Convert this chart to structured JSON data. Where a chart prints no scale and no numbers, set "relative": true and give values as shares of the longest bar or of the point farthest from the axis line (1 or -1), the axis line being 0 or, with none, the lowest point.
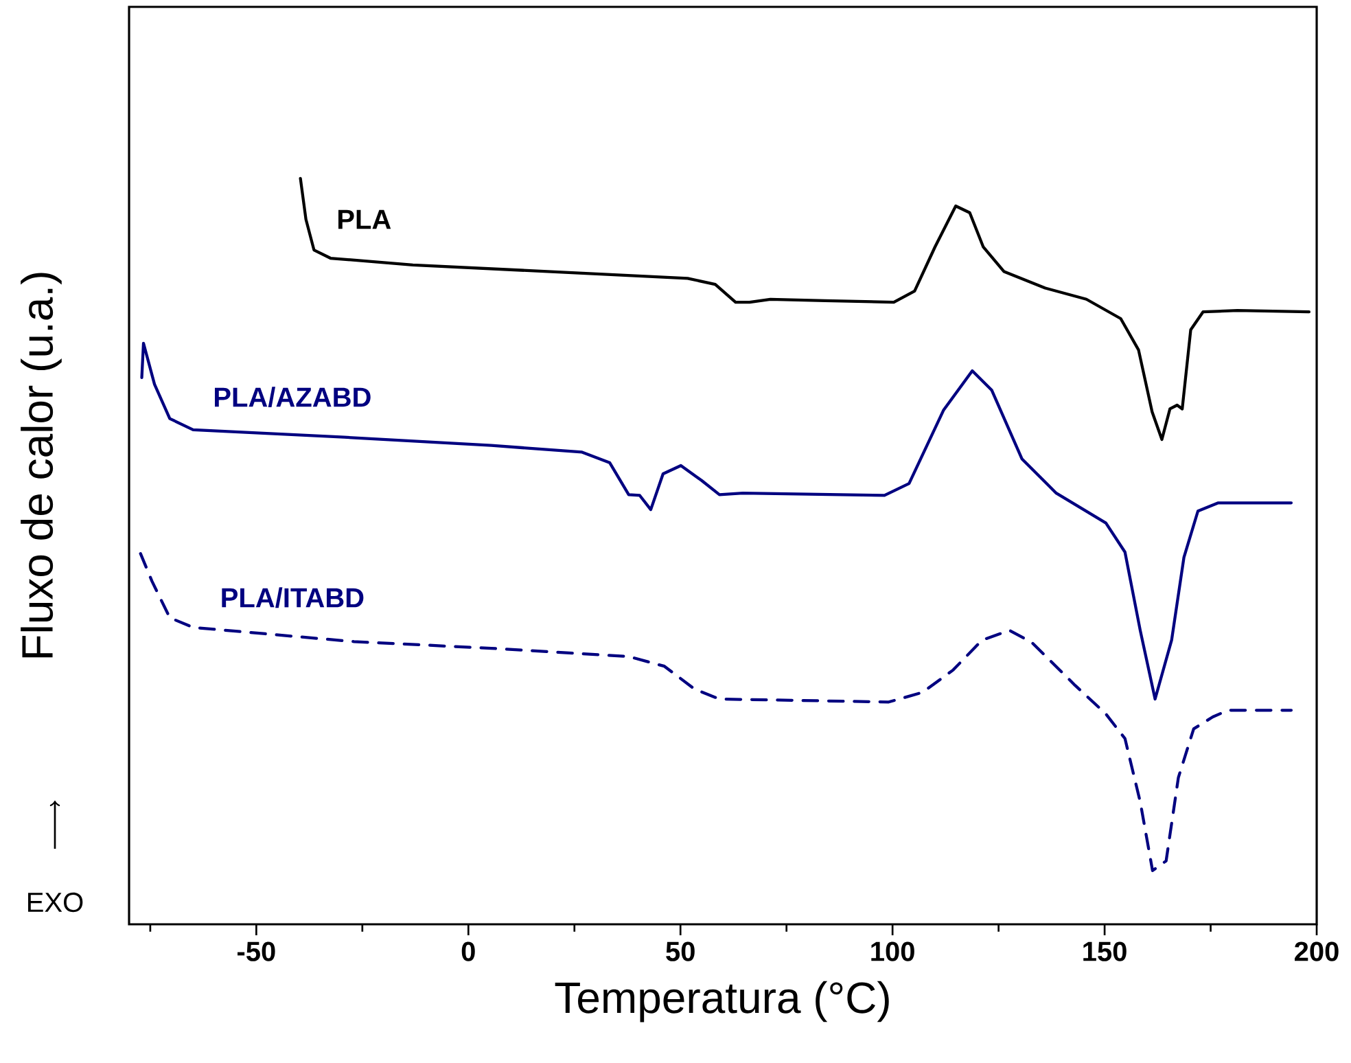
{
  "chart_data": {
    "type": "line",
    "relative": true,
    "xlabel": "Temperatura (°C)",
    "ylabel": "Fluxo de calor (u.a.)",
    "annotations": [
      "EXO"
    ],
    "xlim": [
      -80,
      200
    ],
    "xticks": [
      {
        "value": -75,
        "label": null
      },
      -50,
      {
        "value": -25,
        "label": null
      },
      0,
      {
        "value": 25,
        "label": null
      },
      50,
      {
        "value": 75,
        "label": null
      },
      100,
      {
        "value": 125,
        "label": null
      },
      150,
      {
        "value": 175,
        "label": null
      },
      200
    ],
    "series": [
      {
        "name": "PLA",
        "color": "#000000",
        "line_style": "solid",
        "x": [
          -39.6,
          -38.3,
          -36.4,
          -32.5,
          -13.1,
          19.3,
          51.7,
          58.2,
          63.0,
          66.3,
          71.2,
          84.1,
          100.3,
          105.2,
          110.0,
          114.9,
          118.2,
          121.4,
          126.3,
          136.0,
          145.7,
          153.8,
          158.0,
          161.2,
          163.5,
          165.4,
          167.1,
          168.3,
          170.3,
          173.2,
          181.3,
          198.2
        ],
        "values": [
          1.0,
          0.945,
          0.904,
          0.893,
          0.884,
          0.875,
          0.866,
          0.858,
          0.834,
          0.834,
          0.838,
          0.836,
          0.834,
          0.849,
          0.908,
          0.963,
          0.954,
          0.908,
          0.875,
          0.853,
          0.838,
          0.812,
          0.77,
          0.687,
          0.65,
          0.691,
          0.696,
          0.691,
          0.797,
          0.821,
          0.823,
          0.821
        ]
      },
      {
        "name": "PLA/AZABD",
        "color": "#000080",
        "line_style": "solid",
        "x": [
          -77.0,
          -76.6,
          -74.0,
          -70.4,
          -64.9,
          -29.3,
          5.4,
          26.8,
          33.3,
          37.8,
          40.4,
          43.0,
          45.9,
          50.1,
          55.0,
          59.2,
          64.7,
          98.1,
          103.9,
          112.0,
          118.8,
          123.4,
          130.5,
          138.6,
          150.3,
          154.8,
          158.4,
          161.9,
          165.8,
          168.7,
          172.0,
          176.8,
          194.0
        ],
        "values": [
          0.733,
          0.779,
          0.724,
          0.678,
          0.663,
          0.653,
          0.642,
          0.633,
          0.619,
          0.576,
          0.575,
          0.556,
          0.604,
          0.615,
          0.595,
          0.576,
          0.578,
          0.575,
          0.591,
          0.689,
          0.742,
          0.716,
          0.624,
          0.578,
          0.538,
          0.499,
          0.394,
          0.302,
          0.381,
          0.492,
          0.554,
          0.565,
          0.565
        ]
      },
      {
        "name": "PLA/ITABD",
        "color": "#000080",
        "line_style": "dashed",
        "x": [
          -77.3,
          -74.6,
          -70.4,
          -64.9,
          -27.0,
          5.4,
          37.8,
          46.2,
          53.4,
          59.2,
          99.1,
          107.1,
          114.3,
          121.1,
          127.6,
          132.8,
          143.1,
          150.3,
          154.8,
          158.4,
          161.3,
          164.5,
          167.4,
          171.0,
          175.5,
          179.1,
          194.0
        ],
        "values": [
          0.497,
          0.46,
          0.411,
          0.398,
          0.379,
          0.37,
          0.359,
          0.346,
          0.315,
          0.302,
          0.298,
          0.311,
          0.341,
          0.381,
          0.394,
          0.378,
          0.32,
          0.282,
          0.249,
          0.164,
          0.072,
          0.085,
          0.197,
          0.262,
          0.278,
          0.287,
          0.287
        ]
      }
    ]
  }
}
